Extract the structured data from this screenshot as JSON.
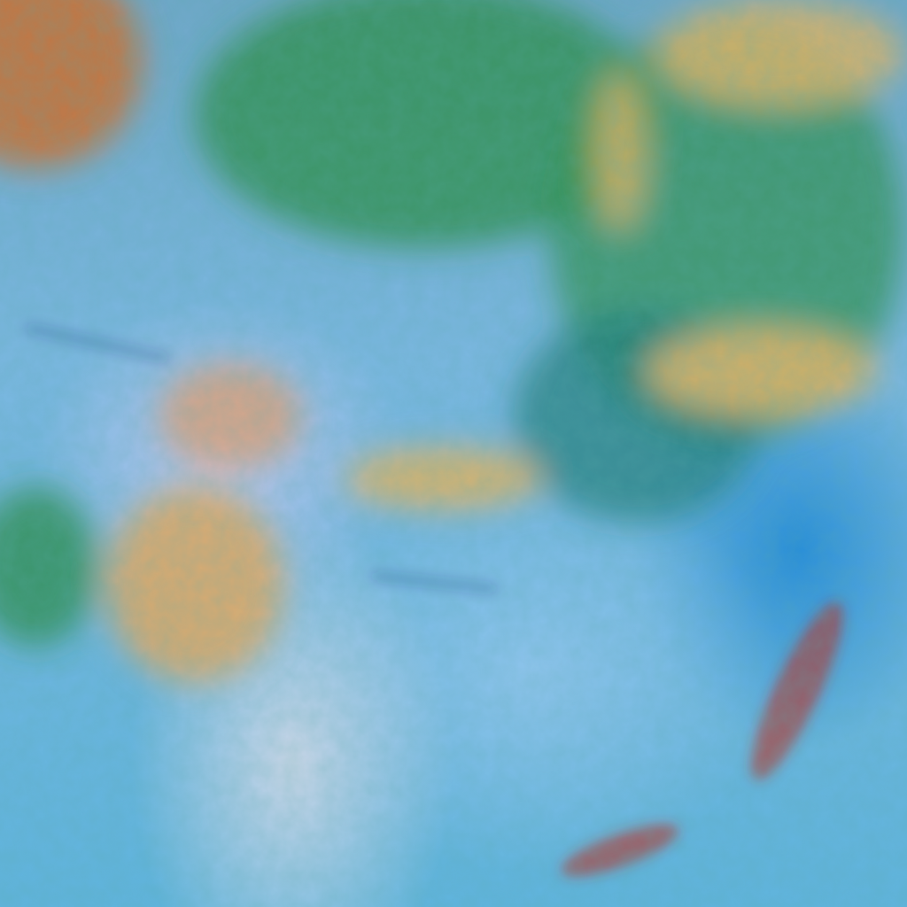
{
  "image": {
    "kind": "false-color satellite cloud imagery",
    "colors": {
      "ocean_blue": "#4fb0dc",
      "haze_lavender": "#a9c4ea",
      "cloud_green": "#2f8f4a",
      "cloud_teal": "#2d9aa0",
      "cloud_tan": "#d9b36a",
      "cloud_orange": "#d98a4a",
      "storm_red": "#b8302a",
      "streak_navy": "#1d2f6a"
    }
  }
}
